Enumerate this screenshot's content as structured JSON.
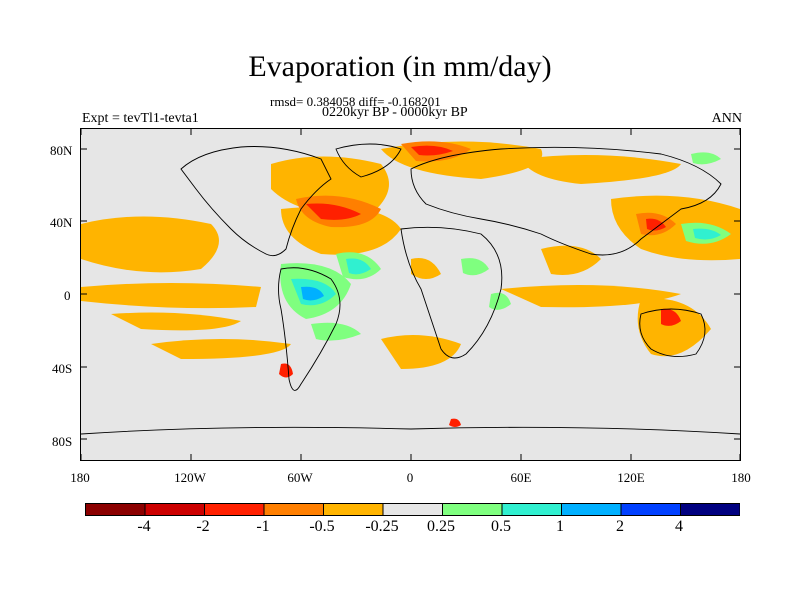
{
  "title": "Evaporation (in mm/day)",
  "stats_line": "rmsd= 0.384058 diff= -0.168201",
  "period_line": "0220kyr BP - 0000kyr BP",
  "experiment": "Expt = tevTl1-tevta1",
  "season": "ANN",
  "lat_labels": [
    "80N",
    "40N",
    "0",
    "40S",
    "80S"
  ],
  "lon_labels": [
    "180",
    "120W",
    "60W",
    "0",
    "60E",
    "120E",
    "180"
  ],
  "colorbar": {
    "labels": [
      "-4",
      "-2",
      "-1",
      "-0.5",
      "-0.25",
      "0.25",
      "0.5",
      "1",
      "2",
      "4"
    ],
    "colors": [
      "#8b0000",
      "#cc0000",
      "#ff2000",
      "#ff7f00",
      "#ffb400",
      "#e6e6e6",
      "#7fff7f",
      "#30f0d0",
      "#00b0ff",
      "#0040ff",
      "#000080"
    ]
  }
}
